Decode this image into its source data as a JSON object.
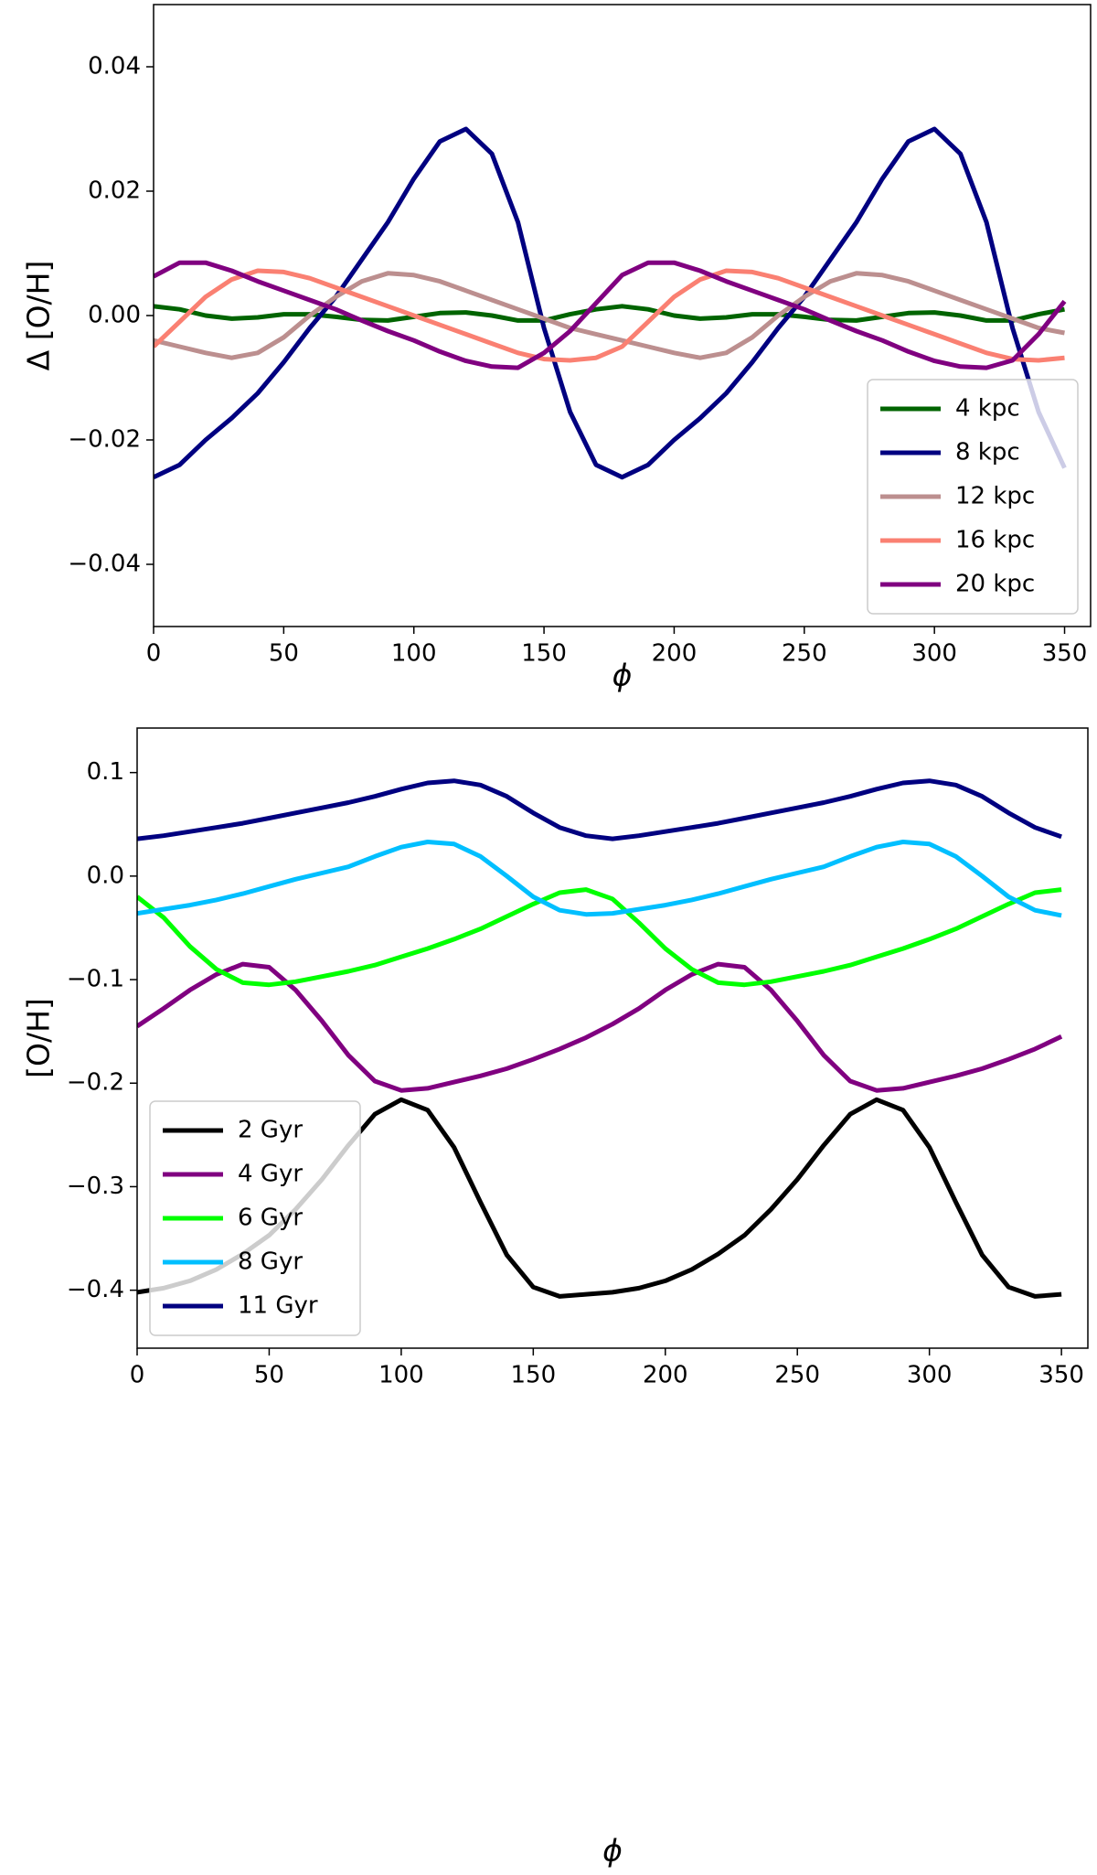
{
  "chart_data": [
    {
      "type": "line",
      "xlabel": "ϕ",
      "ylabel": "Δ [O/H]",
      "x": [
        0,
        10,
        20,
        30,
        40,
        50,
        60,
        70,
        80,
        90,
        100,
        110,
        120,
        130,
        140,
        150,
        160,
        170,
        180,
        190,
        200,
        210,
        220,
        230,
        240,
        250,
        260,
        270,
        280,
        290,
        300,
        310,
        320,
        330,
        340,
        350
      ],
      "xlim": [
        0,
        360
      ],
      "xticks": [
        0,
        50,
        100,
        150,
        200,
        250,
        300,
        350
      ],
      "ylim": [
        -0.05,
        0.05
      ],
      "yticks": [
        {
          "value": -0.04,
          "label": "−0.04"
        },
        {
          "value": -0.02,
          "label": "−0.02"
        },
        {
          "value": 0,
          "label": "0.00"
        },
        {
          "value": 0.02,
          "label": "0.02"
        },
        {
          "value": 0.04,
          "label": "0.04"
        }
      ],
      "legend": "lower right",
      "series": [
        {
          "name": "4 kpc",
          "color": "#006400",
          "values": [
            0.0015,
            0.001,
            0.0,
            -0.0005,
            -0.0003,
            0.0002,
            0.0002,
            -0.0002,
            -0.0007,
            -0.0008,
            -0.0002,
            0.0004,
            0.0005,
            0.0,
            -0.0008,
            -0.0008,
            0.0002,
            0.001,
            0.0015,
            0.001,
            0.0,
            -0.0005,
            -0.0003,
            0.0002,
            0.0002,
            -0.0002,
            -0.0007,
            -0.0008,
            -0.0002,
            0.0004,
            0.0005,
            0.0,
            -0.0008,
            -0.0008,
            0.0002,
            0.001
          ]
        },
        {
          "name": "8 kpc",
          "color": "#000080",
          "values": [
            -0.026,
            -0.024,
            -0.02,
            -0.0165,
            -0.0125,
            -0.0075,
            -0.002,
            0.003,
            0.009,
            0.015,
            0.022,
            0.028,
            0.03,
            0.026,
            0.015,
            -0.002,
            -0.0155,
            -0.024,
            -0.026,
            -0.024,
            -0.02,
            -0.0165,
            -0.0125,
            -0.0075,
            -0.002,
            0.003,
            0.009,
            0.015,
            0.022,
            0.028,
            0.03,
            0.026,
            0.015,
            -0.002,
            -0.0155,
            -0.0245
          ]
        },
        {
          "name": "12 kpc",
          "color": "#bc8f8f",
          "values": [
            -0.004,
            -0.005,
            -0.006,
            -0.0068,
            -0.006,
            -0.0035,
            0.0,
            0.003,
            0.0055,
            0.0068,
            0.0065,
            0.0055,
            0.004,
            0.0025,
            0.001,
            -0.0005,
            -0.002,
            -0.003,
            -0.004,
            -0.005,
            -0.006,
            -0.0068,
            -0.006,
            -0.0035,
            0.0,
            0.003,
            0.0055,
            0.0068,
            0.0065,
            0.0055,
            0.004,
            0.0025,
            0.001,
            -0.0005,
            -0.002,
            -0.0028
          ]
        },
        {
          "name": "16 kpc",
          "color": "#fa8072",
          "values": [
            -0.005,
            -0.001,
            0.003,
            0.0058,
            0.0072,
            0.007,
            0.006,
            0.0045,
            0.003,
            0.0015,
            0.0,
            -0.0015,
            -0.003,
            -0.0045,
            -0.006,
            -0.007,
            -0.0072,
            -0.0068,
            -0.005,
            -0.001,
            0.003,
            0.0058,
            0.0072,
            0.007,
            0.006,
            0.0045,
            0.003,
            0.0015,
            0.0,
            -0.0015,
            -0.003,
            -0.0045,
            -0.006,
            -0.007,
            -0.0072,
            -0.0068
          ]
        },
        {
          "name": "20 kpc",
          "color": "#800080",
          "values": [
            0.0063,
            0.0085,
            0.0085,
            0.0072,
            0.0055,
            0.004,
            0.0025,
            0.001,
            -0.0008,
            -0.0025,
            -0.004,
            -0.0058,
            -0.0073,
            -0.0082,
            -0.0084,
            -0.006,
            -0.0025,
            0.002,
            0.0065,
            0.0085,
            0.0085,
            0.0072,
            0.0055,
            0.004,
            0.0025,
            0.001,
            -0.0008,
            -0.0025,
            -0.004,
            -0.0058,
            -0.0073,
            -0.0082,
            -0.0084,
            -0.0072,
            -0.003,
            0.0023
          ]
        }
      ]
    },
    {
      "type": "line",
      "xlabel": "ϕ",
      "ylabel": "[O/H]",
      "x": [
        0,
        10,
        20,
        30,
        40,
        50,
        60,
        70,
        80,
        90,
        100,
        110,
        120,
        130,
        140,
        150,
        160,
        170,
        180,
        190,
        200,
        210,
        220,
        230,
        240,
        250,
        260,
        270,
        280,
        290,
        300,
        310,
        320,
        330,
        340,
        350
      ],
      "xlim": [
        0,
        360
      ],
      "xticks": [
        0,
        50,
        100,
        150,
        200,
        250,
        300,
        350
      ],
      "ylim": [
        -0.456,
        0.143
      ],
      "yticks": [
        {
          "value": -0.4,
          "label": "−0.4"
        },
        {
          "value": -0.3,
          "label": "−0.3"
        },
        {
          "value": -0.2,
          "label": "−0.2"
        },
        {
          "value": -0.1,
          "label": "−0.1"
        },
        {
          "value": 0,
          "label": "0.0"
        },
        0.1
      ],
      "legend": "lower left",
      "series": [
        {
          "name": "2 Gyr",
          "color": "#000000",
          "values": [
            -0.402,
            -0.398,
            -0.391,
            -0.38,
            -0.365,
            -0.347,
            -0.322,
            -0.293,
            -0.26,
            -0.23,
            -0.216,
            -0.226,
            -0.262,
            -0.315,
            -0.366,
            -0.397,
            -0.406,
            -0.404,
            -0.402,
            -0.398,
            -0.391,
            -0.38,
            -0.365,
            -0.347,
            -0.322,
            -0.293,
            -0.26,
            -0.23,
            -0.216,
            -0.226,
            -0.262,
            -0.315,
            -0.366,
            -0.397,
            -0.406,
            -0.404
          ]
        },
        {
          "name": "4 Gyr",
          "color": "#800080",
          "values": [
            -0.145,
            -0.128,
            -0.11,
            -0.095,
            -0.085,
            -0.088,
            -0.11,
            -0.14,
            -0.173,
            -0.198,
            -0.207,
            -0.205,
            -0.199,
            -0.193,
            -0.186,
            -0.177,
            -0.167,
            -0.156,
            -0.143,
            -0.128,
            -0.11,
            -0.095,
            -0.085,
            -0.088,
            -0.11,
            -0.14,
            -0.173,
            -0.198,
            -0.207,
            -0.205,
            -0.199,
            -0.193,
            -0.186,
            -0.177,
            -0.167,
            -0.155
          ]
        },
        {
          "name": "6 Gyr",
          "color": "#00ff00",
          "values": [
            -0.02,
            -0.04,
            -0.068,
            -0.09,
            -0.103,
            -0.105,
            -0.102,
            -0.097,
            -0.092,
            -0.086,
            -0.078,
            -0.07,
            -0.061,
            -0.051,
            -0.039,
            -0.027,
            -0.016,
            -0.013,
            -0.022,
            -0.045,
            -0.07,
            -0.09,
            -0.103,
            -0.105,
            -0.102,
            -0.097,
            -0.092,
            -0.086,
            -0.078,
            -0.07,
            -0.061,
            -0.051,
            -0.039,
            -0.027,
            -0.016,
            -0.013
          ]
        },
        {
          "name": "8 Gyr",
          "color": "#00bfff",
          "values": [
            -0.036,
            -0.032,
            -0.028,
            -0.023,
            -0.017,
            -0.01,
            -0.003,
            0.003,
            0.009,
            0.019,
            0.028,
            0.033,
            0.031,
            0.019,
            0.0,
            -0.02,
            -0.033,
            -0.037,
            -0.036,
            -0.032,
            -0.028,
            -0.023,
            -0.017,
            -0.01,
            -0.003,
            0.003,
            0.009,
            0.019,
            0.028,
            0.033,
            0.031,
            0.019,
            0.0,
            -0.02,
            -0.033,
            -0.038
          ]
        },
        {
          "name": "11 Gyr",
          "color": "#000080",
          "values": [
            0.036,
            0.039,
            0.043,
            0.047,
            0.051,
            0.056,
            0.061,
            0.066,
            0.071,
            0.077,
            0.084,
            0.09,
            0.092,
            0.088,
            0.077,
            0.061,
            0.047,
            0.039,
            0.036,
            0.039,
            0.043,
            0.047,
            0.051,
            0.056,
            0.061,
            0.066,
            0.071,
            0.077,
            0.084,
            0.09,
            0.092,
            0.088,
            0.077,
            0.061,
            0.047,
            0.038
          ]
        }
      ]
    }
  ]
}
